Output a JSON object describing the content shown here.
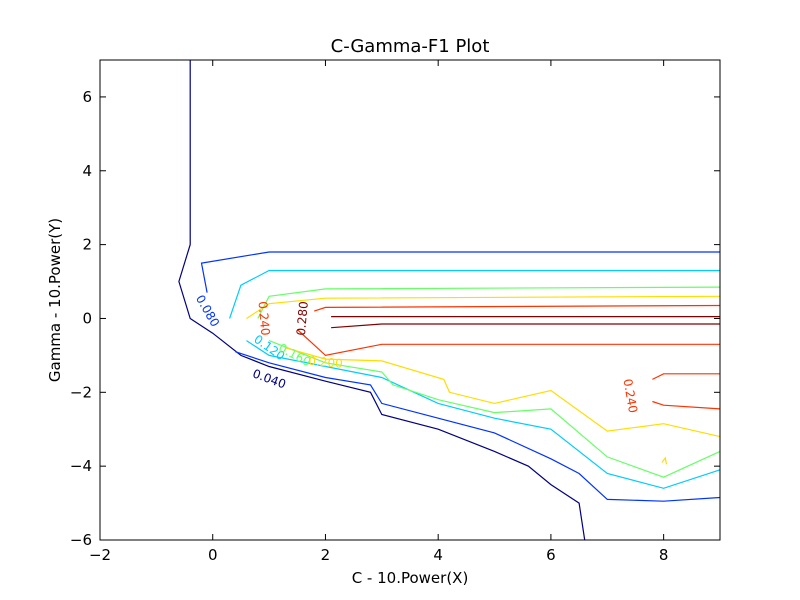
{
  "chart_data": {
    "type": "contour",
    "title": "C-Gamma-F1 Plot",
    "xlabel": "C - 10.Power(X)",
    "ylabel": "Gamma - 10.Power(Y)",
    "xlim": [
      -2,
      9
    ],
    "ylim": [
      -6,
      7
    ],
    "xticks": [
      -2,
      0,
      2,
      4,
      6,
      8
    ],
    "yticks": [
      -6,
      -4,
      -2,
      0,
      2,
      4,
      6
    ],
    "xtick_labels": [
      "−2",
      "0",
      "2",
      "4",
      "6",
      "8"
    ],
    "ytick_labels": [
      "−6",
      "−4",
      "−2",
      "0",
      "2",
      "4",
      "6"
    ],
    "levels": [
      {
        "value": "0.040",
        "color": "#000080",
        "paths": [
          [
            [
              -0.4,
              7
            ],
            [
              -0.4,
              2
            ],
            [
              -0.6,
              1
            ],
            [
              -0.4,
              0
            ],
            [
              0,
              -0.4
            ],
            [
              0.5,
              -1
            ],
            [
              1,
              -1.3
            ],
            [
              2,
              -1.7
            ],
            [
              2.8,
              -2
            ],
            [
              3,
              -2.6
            ],
            [
              4,
              -3
            ],
            [
              5,
              -3.6
            ],
            [
              5.6,
              -4
            ],
            [
              6,
              -4.5
            ],
            [
              6.5,
              -5
            ],
            [
              6.6,
              -6
            ]
          ]
        ]
      },
      {
        "value": "0.080",
        "color": "#0033ff",
        "paths": [
          [
            [
              -0.1,
              0.7
            ],
            [
              -0.2,
              1.5
            ],
            [
              1,
              1.8
            ],
            [
              9,
              1.8
            ]
          ],
          [
            [
              0.4,
              -0.9
            ],
            [
              1,
              -1.2
            ],
            [
              2,
              -1.6
            ],
            [
              2.8,
              -1.8
            ],
            [
              3,
              -2.3
            ],
            [
              4,
              -2.7
            ],
            [
              5,
              -3.1
            ],
            [
              6,
              -3.8
            ],
            [
              6.5,
              -4.2
            ],
            [
              7,
              -4.9
            ],
            [
              8,
              -4.95
            ],
            [
              9,
              -4.85
            ]
          ]
        ]
      },
      {
        "value": "0.120",
        "color": "#00ccff",
        "paths": [
          [
            [
              0.3,
              0
            ],
            [
              0.5,
              0.9
            ],
            [
              1,
              1.3
            ],
            [
              9,
              1.3
            ]
          ],
          [
            [
              0.6,
              -0.6
            ],
            [
              1,
              -1
            ],
            [
              2,
              -1.3
            ],
            [
              3,
              -1.6
            ],
            [
              4,
              -2.3
            ],
            [
              5,
              -2.7
            ],
            [
              6,
              -3
            ],
            [
              7,
              -4.2
            ],
            [
              8,
              -4.6
            ],
            [
              9,
              -4.1
            ]
          ]
        ]
      },
      {
        "value": "0.160",
        "color": "#66ff66",
        "paths": [
          [
            [
              0.8,
              0
            ],
            [
              1,
              0.6
            ],
            [
              2,
              0.8
            ],
            [
              9,
              0.85
            ]
          ],
          [
            [
              1,
              -0.6
            ],
            [
              2,
              -1.2
            ],
            [
              3,
              -1.45
            ],
            [
              3.2,
              -1.8
            ],
            [
              4,
              -2.2
            ],
            [
              5,
              -2.55
            ],
            [
              6,
              -2.45
            ],
            [
              7,
              -3.75
            ],
            [
              8,
              -4.3
            ],
            [
              9,
              -3.6
            ]
          ]
        ]
      },
      {
        "value": "0.200",
        "color": "#ffdd00",
        "paths": [
          [
            [
              0.6,
              0
            ],
            [
              1,
              0.4
            ],
            [
              2,
              0.55
            ],
            [
              9,
              0.6
            ]
          ],
          [
            [
              1.3,
              -0.8
            ],
            [
              2,
              -1.1
            ],
            [
              3,
              -1.15
            ],
            [
              4.1,
              -1.65
            ],
            [
              4.2,
              -2
            ],
            [
              5,
              -2.3
            ],
            [
              6,
              -1.95
            ],
            [
              7,
              -3.05
            ],
            [
              8,
              -2.85
            ],
            [
              9,
              -3.2
            ]
          ],
          [
            [
              7.97,
              -3.9
            ],
            [
              8.03,
              -3.78
            ],
            [
              8.05,
              -3.95
            ]
          ]
        ]
      },
      {
        "value": "0.240",
        "color": "#ff3300",
        "paths": [
          [
            [
              1.8,
              0.2
            ],
            [
              2,
              0.3
            ],
            [
              9,
              0.35
            ]
          ],
          [
            [
              1.5,
              -0.3
            ],
            [
              2,
              -1
            ],
            [
              3,
              -0.7
            ],
            [
              9,
              -0.7
            ]
          ],
          [
            [
              7.8,
              -1.65
            ],
            [
              8,
              -1.5
            ],
            [
              9,
              -1.5
            ]
          ],
          [
            [
              7.8,
              -2.25
            ],
            [
              8,
              -2.35
            ],
            [
              9,
              -2.45
            ]
          ]
        ]
      },
      {
        "value": "0.280",
        "color": "#800000",
        "paths": [
          [
            [
              2.1,
              0.05
            ],
            [
              9,
              0.05
            ]
          ],
          [
            [
              2.1,
              -0.25
            ],
            [
              3,
              -0.15
            ],
            [
              9,
              -0.15
            ]
          ]
        ]
      }
    ],
    "contour_labels": [
      {
        "text": "0.080",
        "color": "#0033ff",
        "x": -0.1,
        "y": 0.2,
        "rotate": 60
      },
      {
        "text": "0.040",
        "color": "#000080",
        "x": 1.0,
        "y": -1.65,
        "rotate": 20
      },
      {
        "text": "0.120",
        "color": "#00ccff",
        "x": 1.0,
        "y": -0.8,
        "rotate": 35
      },
      {
        "text": "0.160",
        "color": "#66ff66",
        "x": 1.45,
        "y": -1.0,
        "rotate": 28
      },
      {
        "text": "0.200",
        "color": "#ffdd00",
        "x": 2.0,
        "y": -1.2,
        "rotate": 5
      },
      {
        "text": "0.240",
        "color": "#ff3300",
        "x": 0.9,
        "y": 0.0,
        "rotate": 85
      },
      {
        "text": "0.280",
        "color": "#800000",
        "x": 1.6,
        "y": 0.0,
        "rotate": -85
      },
      {
        "text": "0.240",
        "color": "#ff3300",
        "x": 7.4,
        "y": -2.1,
        "rotate": 80
      }
    ]
  }
}
